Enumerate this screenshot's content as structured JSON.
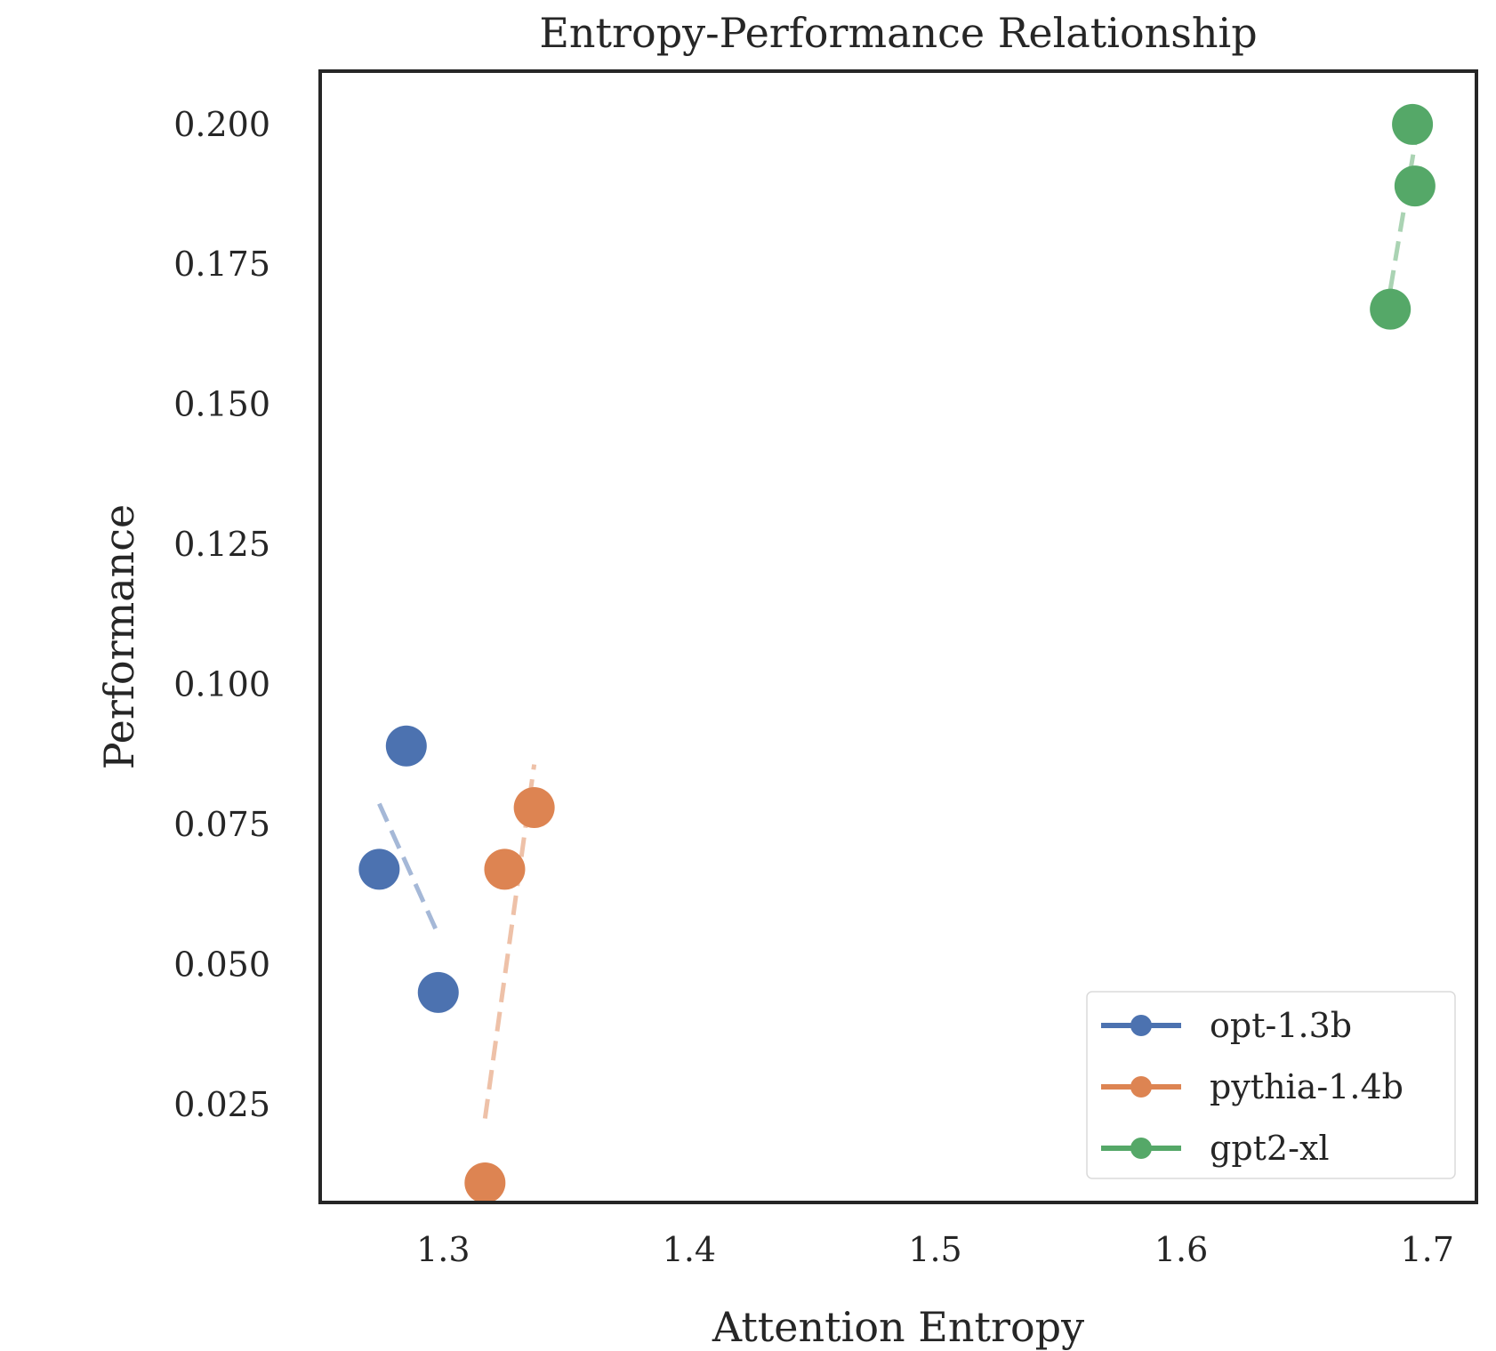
{
  "chart_data": {
    "type": "scatter",
    "title": "Entropy-Performance Relationship",
    "xlabel": "Attention Entropy",
    "ylabel": "Performance",
    "xlim": [
      1.25,
      1.72
    ],
    "ylim": [
      0.0075,
      0.2095
    ],
    "xticks": [
      1.3,
      1.4,
      1.5,
      1.6,
      1.7
    ],
    "yticks": [
      0.025,
      0.05,
      0.075,
      0.1,
      0.125,
      0.15,
      0.175,
      0.2
    ],
    "xtick_labels": [
      "1.3",
      "1.4",
      "1.5",
      "1.6",
      "1.7"
    ],
    "ytick_labels": [
      "0.025",
      "0.050",
      "0.075",
      "0.100",
      "0.125",
      "0.150",
      "0.175",
      "0.200"
    ],
    "grid": false,
    "legend_position": "lower-right",
    "series": [
      {
        "name": "opt-1.3b",
        "color": "#4c72b0",
        "points": [
          {
            "x": 1.285,
            "y": 0.089
          },
          {
            "x": 1.274,
            "y": 0.067
          },
          {
            "x": 1.298,
            "y": 0.045
          }
        ],
        "trend": [
          {
            "x": 1.274,
            "y": 0.0787
          },
          {
            "x": 1.298,
            "y": 0.0553
          }
        ]
      },
      {
        "name": "pythia-1.4b",
        "color": "#dd8452",
        "points": [
          {
            "x": 1.337,
            "y": 0.078
          },
          {
            "x": 1.325,
            "y": 0.067
          },
          {
            "x": 1.317,
            "y": 0.011
          }
        ],
        "trend": [
          {
            "x": 1.317,
            "y": 0.0225
          },
          {
            "x": 1.337,
            "y": 0.0857
          }
        ]
      },
      {
        "name": "gpt2-xl",
        "color": "#55a868",
        "points": [
          {
            "x": 1.694,
            "y": 0.2
          },
          {
            "x": 1.695,
            "y": 0.189
          },
          {
            "x": 1.685,
            "y": 0.167
          }
        ],
        "trend": [
          {
            "x": 1.685,
            "y": 0.1705
          },
          {
            "x": 1.695,
            "y": 0.1965
          }
        ]
      }
    ]
  }
}
